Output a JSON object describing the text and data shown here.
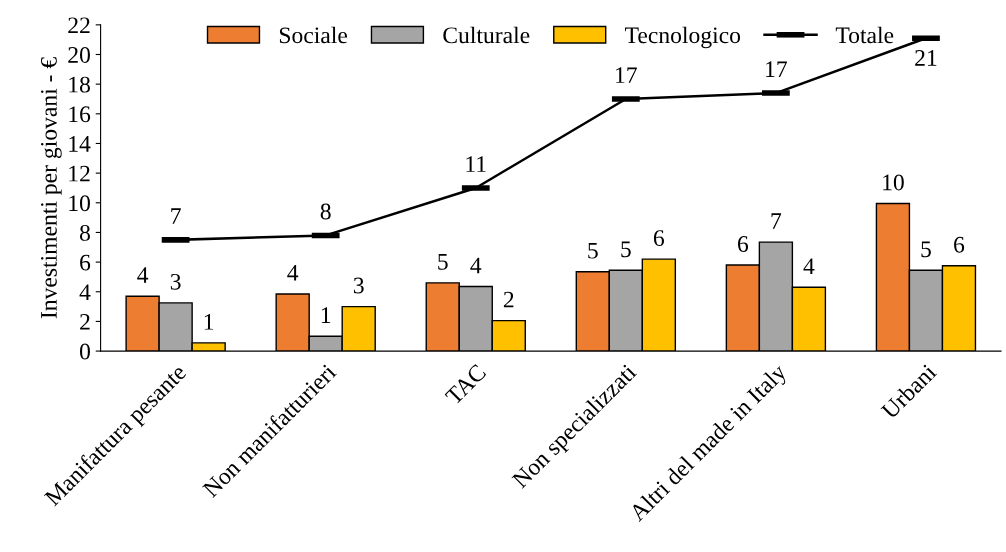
{
  "chart_data": {
    "type": "bar",
    "ylabel": "Investimenti per giovani - €",
    "categories": [
      "Manifattura pesante",
      "Non manifatturieri",
      "TAC",
      "Non specializzati",
      "Altri del made in Italy",
      "Urbani"
    ],
    "series": [
      {
        "name": "Sociale",
        "color": "#ed7d31",
        "values": [
          3.7,
          3.85,
          4.6,
          5.35,
          5.8,
          9.95
        ],
        "value_labels": [
          "4",
          "4",
          "5",
          "5",
          "6",
          "10"
        ]
      },
      {
        "name": "Culturale",
        "color": "#a5a5a5",
        "values": [
          3.25,
          1.0,
          4.35,
          5.45,
          7.35,
          5.45
        ],
        "value_labels": [
          "3",
          "1",
          "4",
          "5",
          "7",
          "5"
        ]
      },
      {
        "name": "Tecnologico",
        "color": "#ffc000",
        "values": [
          0.55,
          3.0,
          2.05,
          6.2,
          4.3,
          5.75
        ],
        "value_labels": [
          "1",
          "3",
          "2",
          "6",
          "4",
          "6"
        ]
      },
      {
        "name": "Totale",
        "type": "line",
        "color": "#000000",
        "values": [
          7.5,
          7.8,
          11.0,
          17.0,
          17.4,
          21.1
        ],
        "value_labels": [
          "7",
          "8",
          "11",
          "17",
          "17",
          "21"
        ]
      }
    ],
    "ylim": [
      0,
      22
    ],
    "yticks": [
      0,
      2,
      4,
      6,
      8,
      10,
      12,
      14,
      16,
      18,
      20,
      22
    ],
    "grid": false,
    "legend": "top"
  }
}
